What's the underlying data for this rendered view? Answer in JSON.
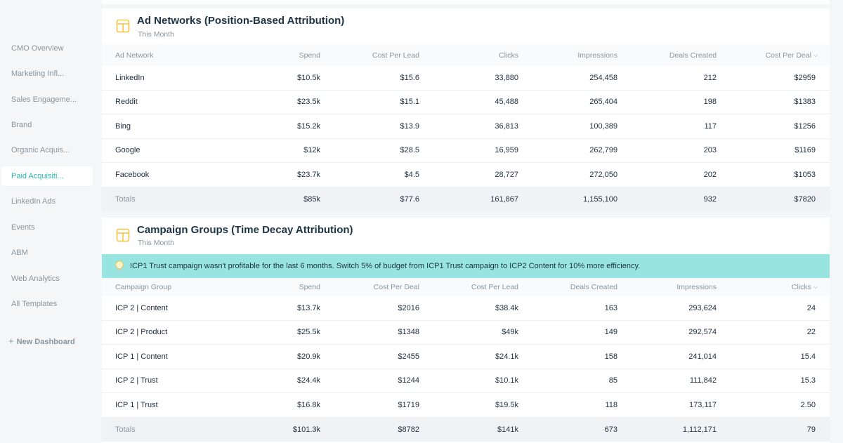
{
  "sidebar": {
    "items": [
      {
        "label": "CMO Overview"
      },
      {
        "label": "Marketing Infl..."
      },
      {
        "label": "Sales Engageme..."
      },
      {
        "label": "Brand"
      },
      {
        "label": "Organic Acquis..."
      },
      {
        "label": "Paid Acquisiti..."
      },
      {
        "label": "LinkedIn Ads"
      },
      {
        "label": "Events"
      },
      {
        "label": "ABM"
      },
      {
        "label": "Web Analytics"
      },
      {
        "label": "All Templates"
      }
    ],
    "active_index": 5,
    "new_dashboard": "New Dashboard"
  },
  "ad_networks": {
    "title": "Ad Networks (Position-Based Attribution)",
    "subtitle": "This Month",
    "columns": [
      "Ad Network",
      "Spend",
      "Cost Per Lead",
      "Clicks",
      "Impressions",
      "Deals Created",
      "Cost Per Deal"
    ],
    "rows": [
      [
        "LinkedIn",
        "$10.5k",
        "$15.6",
        "33,880",
        "254,458",
        "212",
        "$2959"
      ],
      [
        "Reddit",
        "$23.5k",
        "$15.1",
        "45,488",
        "265,404",
        "198",
        "$1383"
      ],
      [
        "Bing",
        "$15.2k",
        "$13.9",
        "36,813",
        "100,389",
        "117",
        "$1256"
      ],
      [
        "Google",
        "$12k",
        "$28.5",
        "16,959",
        "262,799",
        "203",
        "$1169"
      ],
      [
        "Facebook",
        "$23.7k",
        "$4.5",
        "28,727",
        "272,050",
        "202",
        "$1053"
      ]
    ],
    "totals": [
      "Totals",
      "$85k",
      "$77.6",
      "161,867",
      "1,155,100",
      "932",
      "$7820"
    ]
  },
  "campaign_groups": {
    "title": "Campaign Groups (Time Decay Attribution)",
    "subtitle": "This Month",
    "insight": "ICP1 Trust campaign wasn't profitable for the last 6 months. Switch 5% of budget from ICP1 Trust campaign to ICP2 Content for 10% more efficiency.",
    "columns": [
      "Campaign Group",
      "Spend",
      "Cost Per Deal",
      "Cost Per Lead",
      "Deals Created",
      "Impressions",
      "Clicks"
    ],
    "rows": [
      [
        "ICP 2 | Content",
        "$13.7k",
        "$2016",
        "$38.4k",
        "163",
        "293,624",
        "24"
      ],
      [
        "ICP 2 | Product",
        "$25.5k",
        "$1348",
        "$49k",
        "149",
        "292,574",
        "22"
      ],
      [
        "ICP 1 | Content",
        "$20.9k",
        "$2455",
        "$24.1k",
        "158",
        "241,014",
        "15.4"
      ],
      [
        "ICP 2 | Trust",
        "$24.4k",
        "$1244",
        "$10.1k",
        "85",
        "111,842",
        "15.3"
      ],
      [
        "ICP 1 | Trust",
        "$16.8k",
        "$1719",
        "$19.5k",
        "118",
        "173,117",
        "2.50"
      ]
    ],
    "totals": [
      "Totals",
      "$101.3k",
      "$8782",
      "$141k",
      "673",
      "1,112,171",
      "79"
    ]
  },
  "icons": {
    "card": "table-icon",
    "insight": "lightbulb-icon",
    "sort": "chevron-down-icon",
    "add": "plus-icon"
  },
  "colors": {
    "accent": "#2fb6b0",
    "insight_bg": "#98e4e1",
    "icon_yellow": "#f5c443"
  }
}
